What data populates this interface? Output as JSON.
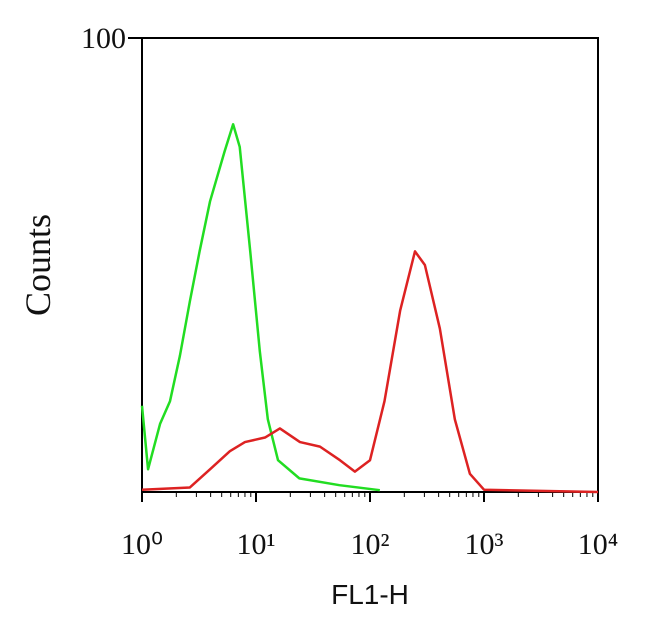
{
  "chart_data": {
    "type": "line",
    "x_label": "FL1-H",
    "y_label": "Counts",
    "xscale": "log",
    "xlim": [
      1,
      10000
    ],
    "xticks": [
      {
        "value": 1,
        "label": "10⁰"
      },
      {
        "value": 10,
        "label": "10¹"
      },
      {
        "value": 100,
        "label": "10²"
      },
      {
        "value": 1000,
        "label": "10³"
      },
      {
        "value": 10000,
        "label": "10⁴"
      }
    ],
    "ylim": [
      0,
      100
    ],
    "yticks": [
      100
    ],
    "series": [
      {
        "color": "#22dd22",
        "x": [
          1,
          1.13,
          1.44,
          1.76,
          2.15,
          2.63,
          3.2,
          3.95,
          5.3,
          6.3,
          7.2,
          8.9,
          10.8,
          12.7,
          15.6,
          24,
          54,
          122
        ],
        "values": [
          19,
          5,
          15,
          20,
          30,
          42,
          53,
          64,
          75,
          81,
          76,
          53,
          31,
          16,
          7,
          3,
          1.5,
          0.4
        ]
      },
      {
        "color": "#dd2222",
        "x": [
          1,
          2.63,
          3.95,
          5.9,
          8.0,
          12,
          16.2,
          24.3,
          36.4,
          54.5,
          73.7,
          100,
          134,
          184,
          248,
          303,
          410,
          555,
          752,
          1000,
          10000
        ],
        "values": [
          0.5,
          1,
          5,
          9,
          11,
          12,
          14,
          11,
          10,
          7,
          4.5,
          7,
          20,
          40,
          53,
          50,
          36,
          16,
          4,
          0.5,
          0
        ]
      }
    ]
  }
}
